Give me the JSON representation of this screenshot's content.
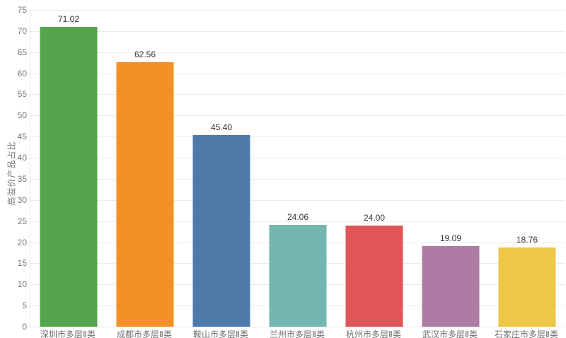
{
  "chart_data": {
    "type": "bar",
    "title": "",
    "xlabel": "",
    "ylabel": "高溢价产品占比",
    "categories": [
      "深圳市多层Ⅱ类",
      "成都市多层Ⅱ类",
      "鞍山市多层Ⅱ类",
      "兰州市多层Ⅱ类",
      "杭州市多层Ⅱ类",
      "武汉市多层Ⅱ类",
      "石家庄市多层Ⅱ类"
    ],
    "values": [
      71.02,
      62.56,
      45.4,
      24.06,
      24.0,
      19.09,
      18.76
    ],
    "value_labels": [
      "71.02",
      "62.56",
      "45.40",
      "24.06",
      "24.00",
      "19.09",
      "18.76"
    ],
    "bar_colors": [
      "#55a44e",
      "#f39027",
      "#4d7aa9",
      "#74b6b0",
      "#e05658",
      "#ae7ba4",
      "#ecc846"
    ],
    "ylim": [
      0,
      75
    ],
    "yticks": [
      0,
      5,
      10,
      15,
      20,
      25,
      30,
      35,
      40,
      45,
      50,
      55,
      60,
      65,
      70,
      75
    ],
    "grid": "horizontal",
    "legend": "none"
  },
  "style": {
    "background": "#ffffff",
    "grid_color": "#ebebeb",
    "axis_line_color": "#e6e6e6",
    "tick_text_color": "#757575",
    "category_text_color": "#6e6e6e",
    "value_text_color": "#333333"
  }
}
